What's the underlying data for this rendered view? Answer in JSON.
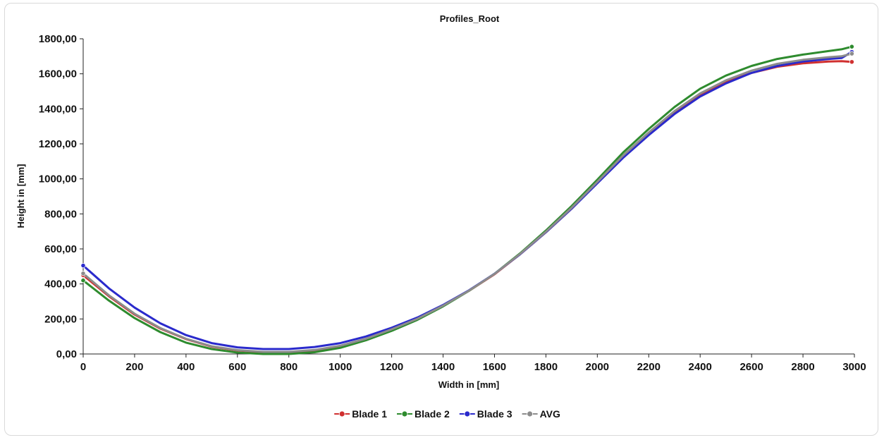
{
  "chart_data": {
    "type": "line",
    "title": "Profiles_Root",
    "xlabel": "Width in [mm]",
    "ylabel": "Height in [mm]",
    "xlim": [
      0,
      3000
    ],
    "ylim": [
      0,
      1800
    ],
    "x_ticks": [
      "0",
      "200",
      "400",
      "600",
      "800",
      "1000",
      "1200",
      "1400",
      "1600",
      "1800",
      "2000",
      "2200",
      "2400",
      "2600",
      "2800",
      "3000"
    ],
    "y_ticks": [
      "0,00",
      "200,00",
      "400,00",
      "600,00",
      "800,00",
      "1000,00",
      "1200,00",
      "1400,00",
      "1600,00",
      "1800,00"
    ],
    "grid": false,
    "legend_position": "bottom",
    "x": [
      0,
      100,
      200,
      300,
      400,
      500,
      600,
      700,
      800,
      900,
      1000,
      1100,
      1200,
      1300,
      1400,
      1500,
      1600,
      1700,
      1800,
      1900,
      2000,
      2100,
      2200,
      2300,
      2400,
      2500,
      2600,
      2700,
      2800,
      2900,
      2950,
      2990
    ],
    "series": [
      {
        "name": "Blade 1",
        "color": "#d03030",
        "values": [
          450,
          330,
          225,
          145,
          85,
          42,
          20,
          10,
          10,
          20,
          45,
          85,
          140,
          200,
          275,
          360,
          455,
          570,
          695,
          830,
          980,
          1130,
          1260,
          1380,
          1480,
          1555,
          1605,
          1640,
          1660,
          1670,
          1672,
          1668
        ]
      },
      {
        "name": "Blade 2",
        "color": "#2e8b2e",
        "values": [
          420,
          305,
          205,
          125,
          65,
          28,
          8,
          0,
          0,
          10,
          35,
          78,
          132,
          195,
          272,
          360,
          458,
          575,
          705,
          845,
          995,
          1150,
          1285,
          1410,
          1515,
          1590,
          1645,
          1685,
          1710,
          1730,
          1740,
          1755
        ]
      },
      {
        "name": "Blade 3",
        "color": "#2a2acc",
        "values": [
          505,
          375,
          265,
          175,
          108,
          62,
          38,
          28,
          28,
          40,
          62,
          100,
          150,
          208,
          280,
          363,
          458,
          570,
          695,
          830,
          975,
          1120,
          1250,
          1370,
          1470,
          1545,
          1605,
          1645,
          1670,
          1685,
          1690,
          1725
        ]
      },
      {
        "name": "AVG",
        "color": "#8c8c8c",
        "values": [
          460,
          335,
          230,
          148,
          87,
          44,
          22,
          12,
          12,
          23,
          47,
          87,
          141,
          201,
          276,
          361,
          457,
          572,
          698,
          835,
          983,
          1133,
          1265,
          1387,
          1488,
          1563,
          1618,
          1657,
          1680,
          1695,
          1700,
          1715
        ]
      }
    ]
  }
}
